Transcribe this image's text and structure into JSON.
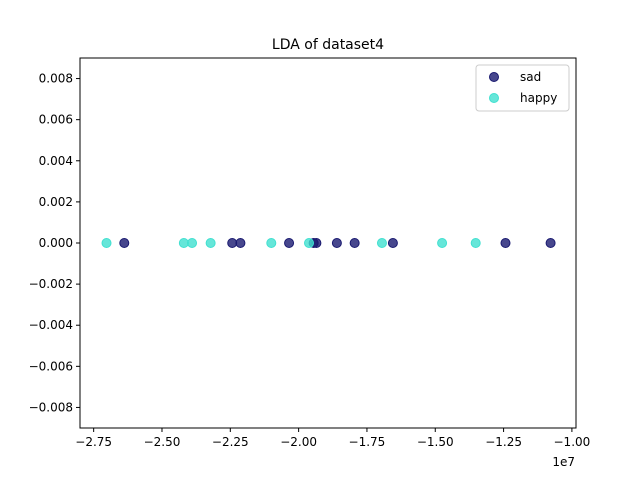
{
  "chart_data": {
    "type": "scatter",
    "title": "LDA of dataset4",
    "xlabel": "",
    "ylabel": "",
    "x_offset_label": "1e7",
    "xlim": [
      -28000000.0,
      -9850000.0
    ],
    "ylim": [
      -0.009,
      0.009
    ],
    "xticks": [
      -27500000.0,
      -25000000.0,
      -22500000.0,
      -20000000.0,
      -17500000.0,
      -15000000.0,
      -12500000.0,
      -10000000.0
    ],
    "xtick_labels": [
      "−2.75",
      "−2.50",
      "−2.25",
      "−2.00",
      "−1.75",
      "−1.50",
      "−1.25",
      "−1.00"
    ],
    "yticks": [
      -0.008,
      -0.006,
      -0.004,
      -0.002,
      0.0,
      0.002,
      0.004,
      0.006,
      0.008
    ],
    "ytick_labels": [
      "−0.008",
      "−0.006",
      "−0.004",
      "−0.002",
      "0.000",
      "0.002",
      "0.004",
      "0.006",
      "0.008"
    ],
    "grid": false,
    "legend_position": "top-right",
    "series": [
      {
        "name": "sad",
        "color": "#191970",
        "points": [
          {
            "x": -26380000.0,
            "y": 0
          },
          {
            "x": -22430000.0,
            "y": 0
          },
          {
            "x": -22130000.0,
            "y": 0
          },
          {
            "x": -20350000.0,
            "y": 0
          },
          {
            "x": -19450000.0,
            "y": 0
          },
          {
            "x": -19350000.0,
            "y": 0
          },
          {
            "x": -18600000.0,
            "y": 0
          },
          {
            "x": -17950000.0,
            "y": 0
          },
          {
            "x": -16550000.0,
            "y": 0
          },
          {
            "x": -12430000.0,
            "y": 0
          },
          {
            "x": -10780000.0,
            "y": 0
          }
        ]
      },
      {
        "name": "happy",
        "color": "#40e0d0",
        "points": [
          {
            "x": -27030000.0,
            "y": 0
          },
          {
            "x": -24200000.0,
            "y": 0
          },
          {
            "x": -23900000.0,
            "y": 0
          },
          {
            "x": -23220000.0,
            "y": 0
          },
          {
            "x": -21000000.0,
            "y": 0
          },
          {
            "x": -19620000.0,
            "y": 0
          },
          {
            "x": -16950000.0,
            "y": 0
          },
          {
            "x": -14750000.0,
            "y": 0
          },
          {
            "x": -13520000.0,
            "y": 0
          }
        ]
      }
    ]
  }
}
